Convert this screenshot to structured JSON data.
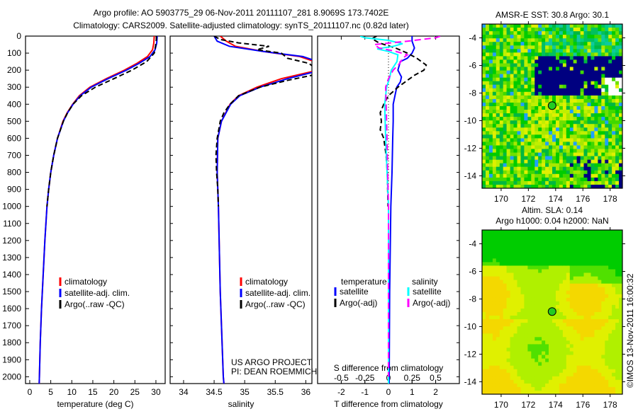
{
  "title_line1": "Argo profile: AO 5903775_29 06-Nov-2011 20111107_281 8.9069S 173.7402E",
  "title_line2": "Climatology: CARS2009. Satellite-adjusted climatology: synTS_20111107.nc (0.82d later)",
  "copyright": "©IMOS 13-Nov-2011 16:00:32",
  "colors": {
    "clim": "#ff0000",
    "sat": "#0000ff",
    "argo": "#000000",
    "s_sat": "#00ffff",
    "s_argo": "#ff00ff",
    "marker": "#22cc22"
  },
  "chart_data": [
    {
      "type": "line",
      "id": "temperature",
      "xlabel": "temperature (deg C)",
      "ylabel": "",
      "xlim": [
        -1,
        32.2
      ],
      "ylim": [
        2040,
        0
      ],
      "xticks": [
        "0",
        "5",
        "10",
        "15",
        "20",
        "25",
        "30"
      ],
      "xtick_values": [
        0,
        5,
        10,
        15,
        20,
        25,
        30
      ],
      "yticks": [
        "0",
        "100",
        "200",
        "300",
        "400",
        "500",
        "600",
        "700",
        "800",
        "900",
        "1000",
        "1100",
        "1200",
        "1300",
        "1400",
        "1500",
        "1600",
        "1700",
        "1800",
        "1900",
        "2000"
      ],
      "ytick_values": [
        0,
        100,
        200,
        300,
        400,
        500,
        600,
        700,
        800,
        900,
        1000,
        1100,
        1200,
        1300,
        1400,
        1500,
        1600,
        1700,
        1800,
        1900,
        2000
      ],
      "legend": [
        "climatology",
        "satellite-adj. clim.",
        "Argo(..raw -QC)"
      ],
      "legend_position": "lower-center",
      "series": [
        {
          "name": "climatology",
          "depth": [
            0,
            40,
            80,
            120,
            160,
            200,
            250,
            300,
            350,
            400,
            450,
            500,
            600,
            700,
            800,
            900,
            1000,
            1200,
            1400,
            1600,
            1800,
            2000,
            2040
          ],
          "values": [
            29.6,
            29.5,
            29.2,
            28.0,
            25.5,
            22.5,
            18.2,
            14.3,
            11.8,
            10.2,
            8.9,
            7.9,
            6.6,
            5.7,
            5.0,
            4.5,
            4.1,
            3.6,
            3.2,
            2.8,
            2.5,
            2.3,
            2.25
          ]
        },
        {
          "name": "satellite-adj. clim.",
          "depth": [
            0,
            40,
            80,
            120,
            160,
            200,
            250,
            300,
            350,
            400,
            450,
            500,
            600,
            700,
            800,
            900,
            1000,
            1200,
            1400,
            1600,
            1800,
            2000,
            2040
          ],
          "values": [
            30.3,
            30.2,
            29.8,
            28.6,
            26.0,
            23.0,
            18.6,
            14.6,
            12.0,
            10.3,
            9.0,
            8.0,
            6.6,
            5.7,
            5.0,
            4.5,
            4.1,
            3.6,
            3.2,
            2.8,
            2.5,
            2.3,
            2.25
          ]
        },
        {
          "name": "Argo(..raw -QC)",
          "depth": [
            0,
            20,
            60,
            100,
            150,
            200,
            250,
            300,
            350,
            400,
            450,
            500,
            600,
            700,
            800,
            900,
            1000
          ],
          "values": [
            30.1,
            30.1,
            29.9,
            29.6,
            27.8,
            24.3,
            20.0,
            15.6,
            12.3,
            10.3,
            9.0,
            8.0,
            6.6,
            5.7,
            5.0,
            4.5,
            4.1
          ]
        }
      ]
    },
    {
      "type": "line",
      "id": "salinity",
      "xlabel": "salinity",
      "xlim": [
        33.78,
        36.1
      ],
      "ylim": [
        2040,
        0
      ],
      "xticks": [
        "34",
        "34.5",
        "35",
        "35.5",
        "36"
      ],
      "xtick_values": [
        34,
        34.5,
        35,
        35.5,
        36
      ],
      "legend": [
        "climatology",
        "satellite-adj. clim.",
        "Argo(..raw -QC)"
      ],
      "legend_position": "lower-right",
      "annotation": [
        "US ARGO PROJECT",
        "PI: DEAN ROEMMICH"
      ],
      "series": [
        {
          "name": "climatology",
          "depth": [
            0,
            30,
            60,
            90,
            120,
            150,
            200,
            250,
            300,
            350,
            400,
            500,
            600,
            800,
            1000,
            1500,
            2000,
            2040
          ],
          "values": [
            34.6,
            34.7,
            34.85,
            35.3,
            35.9,
            36.15,
            36.2,
            35.6,
            35.2,
            34.9,
            34.76,
            34.62,
            34.56,
            34.55,
            34.57,
            34.6,
            34.65,
            34.66
          ]
        },
        {
          "name": "satellite-adj. clim.",
          "depth": [
            0,
            30,
            60,
            90,
            120,
            150,
            200,
            250,
            300,
            350,
            400,
            500,
            600,
            800,
            1000,
            1500,
            2000,
            2040
          ],
          "values": [
            34.5,
            34.55,
            34.75,
            35.3,
            35.95,
            36.2,
            36.25,
            35.7,
            35.25,
            34.92,
            34.77,
            34.62,
            34.56,
            34.55,
            34.57,
            34.6,
            34.65,
            34.66
          ]
        },
        {
          "name": "Argo(..raw -QC)",
          "depth": [
            0,
            20,
            40,
            60,
            80,
            100,
            130,
            160,
            200,
            230,
            260,
            300,
            350,
            400,
            450,
            500,
            600,
            700,
            800,
            900,
            1000
          ],
          "values": [
            34.5,
            34.6,
            34.9,
            35.4,
            35.2,
            35.6,
            35.7,
            36.05,
            36.2,
            36.1,
            35.7,
            35.25,
            34.9,
            34.76,
            34.66,
            34.6,
            34.55,
            34.53,
            34.54,
            34.56,
            34.57
          ]
        }
      ]
    },
    {
      "type": "line",
      "id": "difference",
      "xlabel": "T difference from climatology",
      "x2label": "S difference from climatology",
      "xlim": [
        -3.0,
        3.0
      ],
      "ylim": [
        2040,
        0
      ],
      "xticks": [
        "-2",
        "-1",
        "0",
        "1",
        "2"
      ],
      "xtick_values": [
        -2,
        -1,
        0,
        1,
        2
      ],
      "x2ticks": [
        "-0.5",
        "-0.25",
        "0",
        "0.25",
        "0.5"
      ],
      "x2tick_values": [
        -0.5,
        -0.25,
        0,
        0.25,
        0.5
      ],
      "legend_temperature_title": "temperature",
      "legend_salinity_title": "salinity",
      "legend_temperature": [
        "satellite",
        "Argo(-adj)"
      ],
      "legend_salinity": [
        "satellite",
        "Argo(-adj)"
      ],
      "series": [
        {
          "name": "T satellite",
          "axis": "T",
          "depth": [
            0,
            30,
            70,
            100,
            130,
            150,
            200,
            240,
            270,
            300,
            400,
            500,
            600,
            800,
            1000,
            1500,
            2000,
            2040
          ],
          "values": [
            1.0,
            1.0,
            1.1,
            1.0,
            0.8,
            0.5,
            0.4,
            0.55,
            0.5,
            0.35,
            0.2,
            0.2,
            0.18,
            0.15,
            0.1,
            0.05,
            0.03,
            0.03
          ]
        },
        {
          "name": "T Argo(-adj)",
          "axis": "T",
          "depth": [
            0,
            15,
            40,
            70,
            100,
            130,
            170,
            200,
            230,
            260,
            300,
            350,
            400,
            450,
            500,
            550,
            600,
            700,
            800,
            1000
          ],
          "values": [
            -0.5,
            -0.7,
            -0.4,
            0.3,
            0.8,
            1.2,
            1.6,
            1.5,
            1.1,
            0.8,
            0.4,
            0.0,
            -0.2,
            -0.35,
            -0.3,
            -0.35,
            -0.2,
            -0.1,
            -0.05,
            -0.02
          ]
        },
        {
          "name": "S satellite",
          "axis": "S",
          "depth": [
            0,
            10,
            25,
            45,
            60,
            75,
            90,
            110,
            150,
            200,
            250,
            300,
            400,
            600,
            1000,
            2000,
            2040
          ],
          "values": [
            -0.3,
            -0.25,
            0.0,
            0.15,
            0.05,
            -0.12,
            0.0,
            0.1,
            0.09,
            0.03,
            0.01,
            -0.02,
            -0.04,
            -0.03,
            0.0,
            0.0,
            0.0
          ]
        },
        {
          "name": "S Argo(-adj)",
          "axis": "S",
          "depth": [
            0,
            10,
            30,
            50,
            70,
            90,
            110,
            130,
            160,
            200,
            250,
            300,
            500,
            1000,
            2000
          ],
          "values": [
            0.55,
            0.5,
            0.2,
            -0.15,
            -0.1,
            0.08,
            0.2,
            0.15,
            0.12,
            0.05,
            0.0,
            -0.03,
            -0.02,
            0.0,
            0.0
          ]
        }
      ]
    },
    {
      "type": "heatmap",
      "id": "sst-map",
      "title": "AMSR-E SST: 30.8 Argo: 30.1",
      "xticks": [
        "170",
        "172",
        "174",
        "176",
        "178"
      ],
      "xtick_values": [
        170,
        172,
        174,
        176,
        178
      ],
      "yticks": [
        "-4",
        "-6",
        "-8",
        "-10",
        "-12",
        "-14"
      ],
      "ytick_values": [
        -4,
        -6,
        -8,
        -10,
        -12,
        -14
      ],
      "xlim": [
        168.6,
        178.9
      ],
      "ylim": [
        -14.9,
        -3.0
      ],
      "marker": {
        "lon": 173.74,
        "lat": -8.91
      }
    },
    {
      "type": "heatmap",
      "id": "sla-map",
      "title_line1": "Altim. SLA: 0.14",
      "title_line2": "Argo h1000: 0.04 h2000: NaN",
      "xticks": [
        "170",
        "172",
        "174",
        "176",
        "178"
      ],
      "xtick_values": [
        170,
        172,
        174,
        176,
        178
      ],
      "yticks": [
        "-4",
        "-6",
        "-8",
        "-10",
        "-12",
        "-14"
      ],
      "ytick_values": [
        -4,
        -6,
        -8,
        -10,
        -12,
        -14
      ],
      "xlim": [
        168.6,
        178.9
      ],
      "ylim": [
        -14.9,
        -3.0
      ],
      "marker": {
        "lon": 173.74,
        "lat": -8.91
      }
    }
  ]
}
